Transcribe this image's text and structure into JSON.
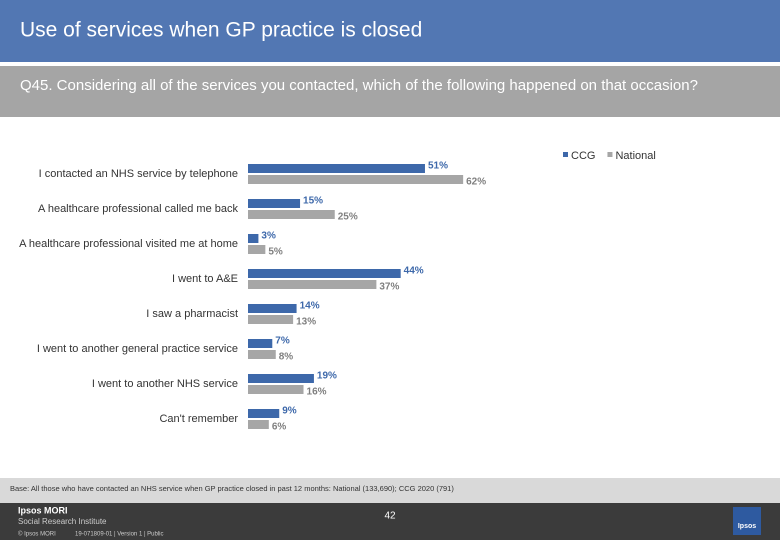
{
  "header": {
    "title": "Use of services when GP practice is closed",
    "question": "Q45. Considering all of the services you contacted, which of the following happened on that occasion?"
  },
  "chart_data": {
    "type": "bar",
    "orientation": "horizontal",
    "categories": [
      "I contacted an NHS service by telephone",
      "A healthcare professional called me back",
      "A healthcare professional visited me at home",
      "I went to A&E",
      "I saw a pharmacist",
      "I went to another general practice service",
      "I  went to another NHS service",
      "Can't remember"
    ],
    "series": [
      {
        "name": "CCG",
        "color": "#3d68aa",
        "values": [
          51,
          15,
          3,
          44,
          14,
          7,
          19,
          9
        ],
        "value_labels": [
          "51%",
          "15%",
          "3%",
          "44%",
          "14%",
          "7%",
          "19%",
          "9%"
        ]
      },
      {
        "name": "National",
        "color": "#a6a6a6",
        "values": [
          62,
          25,
          5,
          37,
          13,
          8,
          16,
          6
        ],
        "value_labels": [
          "62%",
          "25%",
          "5%",
          "37%",
          "13%",
          "8%",
          "16%",
          "6%"
        ]
      }
    ],
    "legend": "top-right"
  },
  "footer": {
    "base": "Base: All those who have contacted an NHS service when GP practice closed in past 12 months: National (133,690); CCG 2020 (791)",
    "brand": "Ipsos MORI",
    "institute": "Social Research Institute",
    "page": "42",
    "copyright": "© Ipsos MORI",
    "job": "19-071809-01 | Version 1 | Public",
    "logo": "Ipsos"
  }
}
